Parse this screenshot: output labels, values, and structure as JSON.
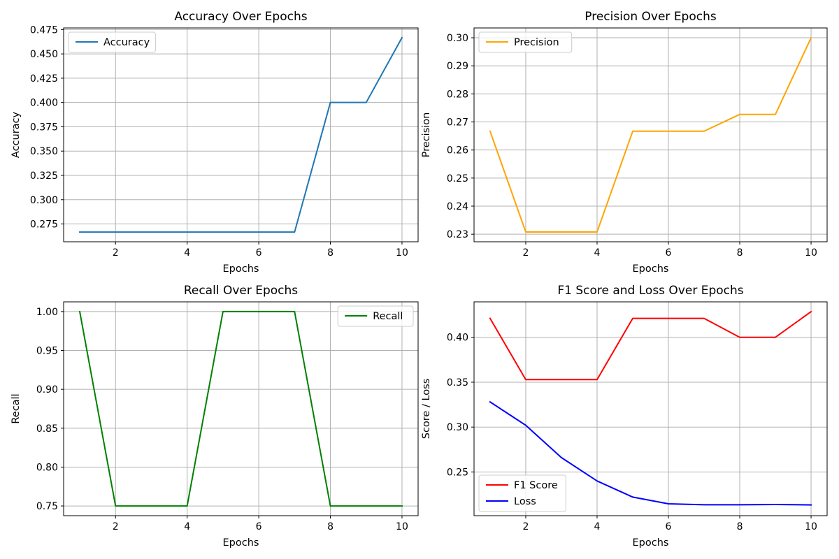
{
  "chart_data": [
    {
      "id": "accuracy",
      "type": "line",
      "title": "Accuracy Over Epochs",
      "xlabel": "Epochs",
      "ylabel": "Accuracy",
      "xlim": [
        0.55,
        10.45
      ],
      "ylim": [
        0.2567,
        0.4767
      ],
      "xticks": [
        2,
        4,
        6,
        8,
        10
      ],
      "xtick_labels": [
        "2",
        "4",
        "6",
        "8",
        "10"
      ],
      "yticks": [
        0.275,
        0.3,
        0.325,
        0.35,
        0.375,
        0.4,
        0.425,
        0.45,
        0.475
      ],
      "ytick_labels": [
        "0.275",
        "0.300",
        "0.325",
        "0.350",
        "0.375",
        "0.400",
        "0.425",
        "0.450",
        "0.475"
      ],
      "grid": true,
      "legend": "upper-left",
      "x": [
        1,
        2,
        3,
        4,
        5,
        6,
        7,
        8,
        9,
        10
      ],
      "series": [
        {
          "name": "Accuracy",
          "color": "#1f77b4",
          "values": [
            0.2667,
            0.2667,
            0.2667,
            0.2667,
            0.2667,
            0.2667,
            0.2667,
            0.4,
            0.4,
            0.4667
          ]
        }
      ]
    },
    {
      "id": "precision",
      "type": "line",
      "title": "Precision Over Epochs",
      "xlabel": "Epochs",
      "ylabel": "Precision",
      "xlim": [
        0.55,
        10.45
      ],
      "ylim": [
        0.2273,
        0.3035
      ],
      "xticks": [
        2,
        4,
        6,
        8,
        10
      ],
      "xtick_labels": [
        "2",
        "4",
        "6",
        "8",
        "10"
      ],
      "yticks": [
        0.23,
        0.24,
        0.25,
        0.26,
        0.27,
        0.28,
        0.29,
        0.3
      ],
      "ytick_labels": [
        "0.23",
        "0.24",
        "0.25",
        "0.26",
        "0.27",
        "0.28",
        "0.29",
        "0.30"
      ],
      "grid": true,
      "legend": "upper-left",
      "x": [
        1,
        2,
        3,
        4,
        5,
        6,
        7,
        8,
        9,
        10
      ],
      "series": [
        {
          "name": "Precision",
          "color": "#ffa500",
          "values": [
            0.2667,
            0.2308,
            0.2308,
            0.2308,
            0.2667,
            0.2667,
            0.2667,
            0.2727,
            0.2727,
            0.3
          ]
        }
      ]
    },
    {
      "id": "recall",
      "type": "line",
      "title": "Recall Over Epochs",
      "xlabel": "Epochs",
      "ylabel": "Recall",
      "xlim": [
        0.55,
        10.45
      ],
      "ylim": [
        0.7375,
        1.0125
      ],
      "xticks": [
        2,
        4,
        6,
        8,
        10
      ],
      "xtick_labels": [
        "2",
        "4",
        "6",
        "8",
        "10"
      ],
      "yticks": [
        0.75,
        0.8,
        0.85,
        0.9,
        0.95,
        1.0
      ],
      "ytick_labels": [
        "0.75",
        "0.80",
        "0.85",
        "0.90",
        "0.95",
        "1.00"
      ],
      "grid": true,
      "legend": "upper-right",
      "x": [
        1,
        2,
        3,
        4,
        5,
        6,
        7,
        8,
        9,
        10
      ],
      "series": [
        {
          "name": "Recall",
          "color": "#008000",
          "values": [
            1.0,
            0.75,
            0.75,
            0.75,
            1.0,
            1.0,
            1.0,
            0.75,
            0.75,
            0.75
          ]
        }
      ]
    },
    {
      "id": "f1-loss",
      "type": "line",
      "title": "F1 Score and Loss Over Epochs",
      "xlabel": "Epochs",
      "ylabel": "Score / Loss",
      "xlim": [
        0.55,
        10.45
      ],
      "ylim": [
        0.2013,
        0.4395
      ],
      "xticks": [
        2,
        4,
        6,
        8,
        10
      ],
      "xtick_labels": [
        "2",
        "4",
        "6",
        "8",
        "10"
      ],
      "yticks": [
        0.25,
        0.3,
        0.35,
        0.4
      ],
      "ytick_labels": [
        "0.25",
        "0.30",
        "0.35",
        "0.40"
      ],
      "grid": true,
      "legend": "lower-left",
      "x": [
        1,
        2,
        3,
        4,
        5,
        6,
        7,
        8,
        9,
        10
      ],
      "series": [
        {
          "name": "F1 Score",
          "color": "#ff0000",
          "values": [
            0.4211,
            0.3529,
            0.3529,
            0.3529,
            0.4211,
            0.4211,
            0.4211,
            0.4,
            0.4,
            0.4286
          ]
        },
        {
          "name": "Loss",
          "color": "#0000ff",
          "values": [
            0.328,
            0.302,
            0.266,
            0.24,
            0.222,
            0.2145,
            0.2135,
            0.2135,
            0.2138,
            0.2133
          ]
        }
      ]
    }
  ]
}
